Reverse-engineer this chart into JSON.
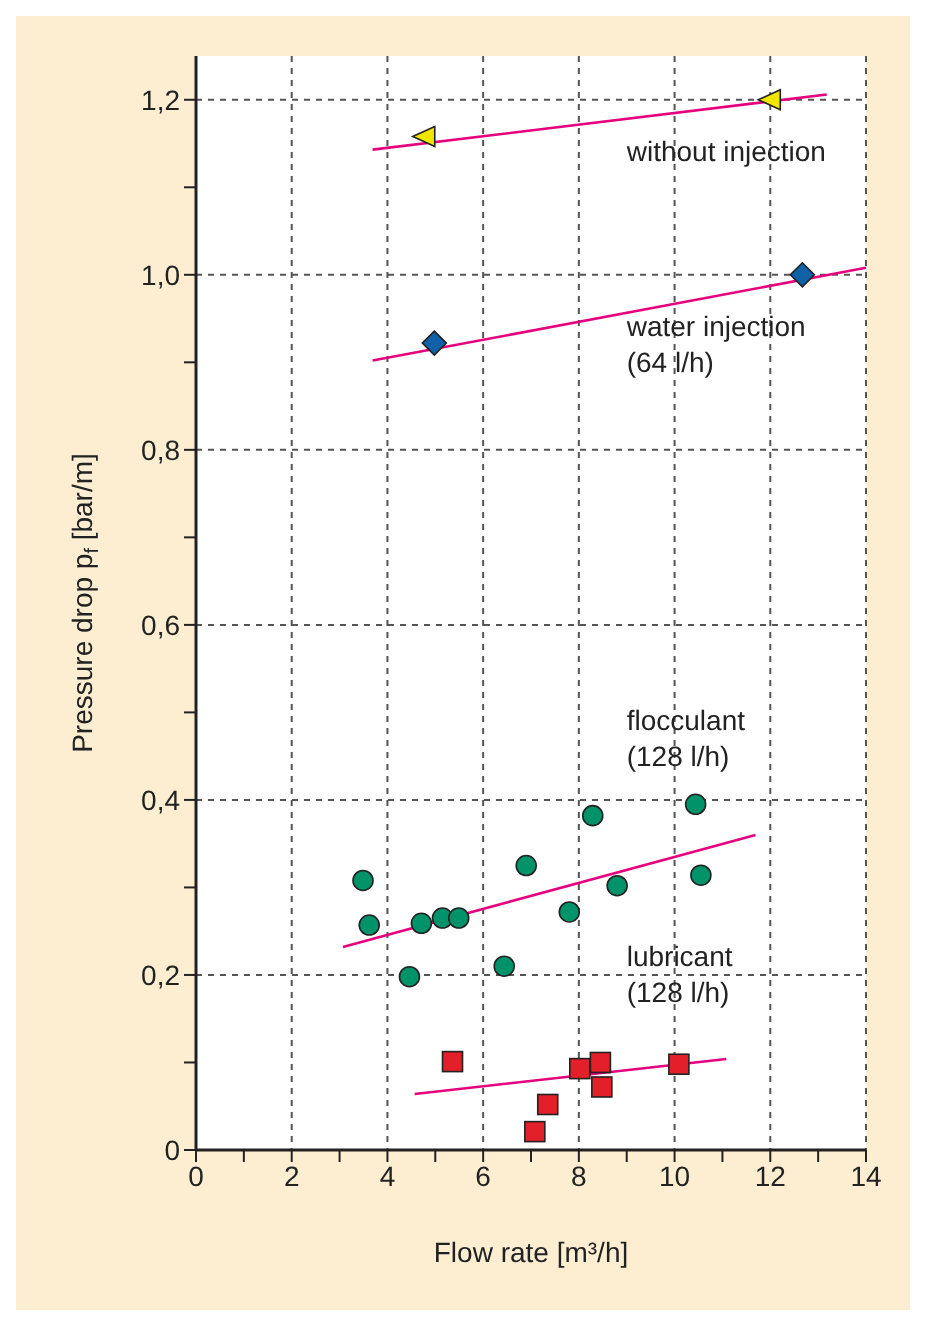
{
  "chart_data": {
    "type": "scatter",
    "xlabel": "Flow rate [m³/h]",
    "ylabel": "Pressure drop p$_{f}$ [bar/m]",
    "xlim": [
      0,
      14
    ],
    "ylim": [
      0,
      1.25
    ],
    "xticks": [
      0,
      {
        "value": 1,
        "label": null
      },
      2,
      {
        "value": 3,
        "label": null
      },
      4,
      {
        "value": 5,
        "label": null
      },
      6,
      {
        "value": 7,
        "label": null
      },
      8,
      {
        "value": 9,
        "label": null
      },
      10,
      {
        "value": 11,
        "label": null
      },
      12,
      {
        "value": 13,
        "label": null
      },
      14
    ],
    "yticks": [
      0,
      {
        "value": 0.1,
        "label": null
      },
      {
        "value": 0.2,
        "label": "0,2"
      },
      {
        "value": 0.3,
        "label": null
      },
      {
        "value": 0.4,
        "label": "0,4"
      },
      {
        "value": 0.5,
        "label": null
      },
      {
        "value": 0.6,
        "label": "0,6"
      },
      {
        "value": 0.7,
        "label": null
      },
      {
        "value": 0.8,
        "label": "0,8"
      },
      {
        "value": 0.9,
        "label": null
      },
      {
        "value": 1.0,
        "label": "1,0"
      },
      {
        "value": 1.1,
        "label": null
      },
      {
        "value": 1.2,
        "label": "1,2"
      }
    ],
    "grid": true,
    "series": [
      {
        "marker": "triangle",
        "color": "#f2e600",
        "x": [
          4.78,
          12.0
        ],
        "values": [
          1.158,
          1.2
        ]
      },
      {
        "type": "line",
        "marker": "none",
        "color": "#e6007e",
        "x": [
          3.69,
          13.18
        ],
        "values": [
          1.143,
          1.206
        ]
      },
      {
        "marker": "diamond",
        "color": "#1062a8",
        "x": [
          4.98,
          12.67
        ],
        "values": [
          0.922,
          1.0
        ]
      },
      {
        "type": "line",
        "marker": "none",
        "color": "#e6007e",
        "x": [
          3.69,
          14.0
        ],
        "values": [
          0.902,
          1.008
        ]
      },
      {
        "marker": "circle",
        "color": "#00936a",
        "x": [
          3.49,
          3.62,
          4.46,
          4.71,
          5.15,
          5.49,
          6.44,
          6.9,
          7.8,
          8.29,
          8.8,
          10.44,
          10.55
        ],
        "values": [
          0.308,
          0.257,
          0.198,
          0.259,
          0.265,
          0.265,
          0.21,
          0.325,
          0.272,
          0.382,
          0.302,
          0.395,
          0.314
        ]
      },
      {
        "type": "line",
        "marker": "none",
        "color": "#e6007e",
        "x": [
          3.07,
          11.69
        ],
        "values": [
          0.232,
          0.36
        ]
      },
      {
        "marker": "square",
        "color": "#e3202a",
        "x": [
          5.36,
          7.35,
          7.08,
          8.02,
          8.45,
          8.48,
          10.09
        ],
        "values": [
          0.101,
          0.052,
          0.021,
          0.093,
          0.1,
          0.072,
          0.098
        ]
      },
      {
        "type": "line",
        "marker": "none",
        "color": "#e6007e",
        "x": [
          4.57,
          11.08
        ],
        "values": [
          0.064,
          0.104
        ]
      }
    ],
    "annotations": [
      "without injection",
      "water injection\n(64 l/h)",
      "flocculant\n(128 l/h)",
      "lubricant\n(128 l/h)"
    ]
  }
}
